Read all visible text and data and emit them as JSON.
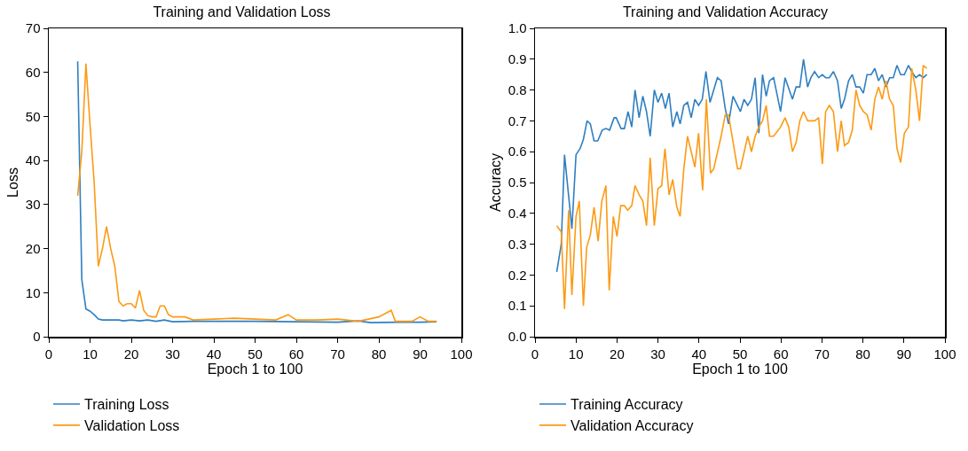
{
  "chart_data": [
    {
      "type": "line",
      "title": "Training and Validation Loss",
      "xlabel": "Epoch 1 to 100",
      "ylabel": "Loss",
      "xlim": [
        0,
        100
      ],
      "xticks": [
        0,
        10,
        20,
        30,
        40,
        50,
        60,
        70,
        80,
        90,
        100
      ],
      "ylim": [
        0,
        70
      ],
      "yticks": [
        0,
        10,
        20,
        30,
        40,
        50,
        60,
        70
      ],
      "grid": false,
      "legend": "bottom",
      "marker": "none",
      "line_style": "solid",
      "series": [
        {
          "name": "Training Loss",
          "color": "#2f7fc1",
          "x": [
            7,
            8,
            9,
            10,
            11,
            12,
            13,
            15,
            17,
            18,
            20,
            22,
            24,
            26,
            28,
            30,
            35,
            40,
            50,
            60,
            70,
            75,
            78,
            85,
            90,
            94
          ],
          "values": [
            62.5,
            13,
            6.3,
            5.8,
            5,
            4,
            3.8,
            3.8,
            3.8,
            3.6,
            3.8,
            3.6,
            3.8,
            3.5,
            3.8,
            3.4,
            3.5,
            3.5,
            3.5,
            3.4,
            3.3,
            3.6,
            3.2,
            3.3,
            3.3,
            3.4
          ]
        },
        {
          "name": "Validation Loss",
          "color": "#fd9a14",
          "x": [
            7,
            8,
            9,
            10,
            11,
            12,
            13,
            14,
            15,
            16,
            17,
            18,
            19,
            20,
            21,
            22,
            23,
            24,
            25,
            26,
            27,
            28,
            29,
            30,
            33,
            35,
            40,
            45,
            50,
            55,
            58,
            60,
            65,
            70,
            75,
            80,
            83,
            84,
            88,
            90,
            92,
            94
          ],
          "values": [
            32,
            42,
            62,
            48,
            35,
            16,
            20,
            25,
            20,
            16,
            8,
            7,
            7.5,
            7.5,
            6.5,
            10.5,
            6,
            4.8,
            4.5,
            4.5,
            7,
            7,
            5,
            4.5,
            4.5,
            3.8,
            4,
            4.2,
            4,
            3.8,
            5,
            3.8,
            3.8,
            4,
            3.5,
            4.5,
            6,
            3.5,
            3.5,
            4.5,
            3.5,
            3.5
          ]
        }
      ]
    },
    {
      "type": "line",
      "title": "Training and Validation Accuracy",
      "xlabel": "Epoch 1 to 100",
      "ylabel": "Accuracy",
      "xlim": [
        0,
        100
      ],
      "xticks": [
        0,
        10,
        20,
        30,
        40,
        50,
        60,
        70,
        80,
        90,
        100
      ],
      "ylim": [
        0,
        1
      ],
      "yticks": [
        {
          "value": 0,
          "label": "0.0"
        },
        0.1,
        0.2,
        0.3,
        0.4,
        0.5,
        0.6,
        0.7,
        0.8,
        0.9,
        {
          "value": 1,
          "label": "1.0"
        }
      ],
      "grid": false,
      "legend": "bottom",
      "marker": "none",
      "line_style": "solid",
      "series": [
        {
          "name": "Training Accuracy",
          "color": "#2f7fc1",
          "x": [
            5.3,
            6.4,
            7.2,
            9,
            10,
            11,
            11.8,
            12.7,
            13.5,
            14.4,
            15.3,
            16.4,
            17.3,
            18.2,
            19.3,
            19.8,
            21,
            21.8,
            22.7,
            23.6,
            24.4,
            25.4,
            26.3,
            27.2,
            28.1,
            29.1,
            30,
            30.9,
            31.8,
            32.7,
            33.6,
            34.6,
            35.4,
            36.3,
            37.2,
            38.1,
            39,
            39.9,
            40.8,
            41.7,
            42.7,
            43.6,
            44.5,
            45.4,
            46.4,
            47.2,
            48.3,
            50.1,
            51,
            51.9,
            52.8,
            53.7,
            54.6,
            55.5,
            56.4,
            57.2,
            58.2,
            59.9,
            61,
            62.8,
            63.7,
            64.6,
            65.5,
            66.5,
            67.3,
            68.2,
            69.2,
            70.1,
            70.9,
            71.8,
            72.8,
            73.8,
            74.7,
            75.5,
            76.5,
            77.4,
            78.3,
            79.2,
            80.1,
            81,
            82,
            82.9,
            83.8,
            84.7,
            85.6,
            86.5,
            87.4,
            88.3,
            89.2,
            90.1,
            91.1,
            91.9,
            92.9,
            93.8,
            94.7,
            95.6
          ],
          "values": [
            0.21,
            0.3,
            0.59,
            0.35,
            0.59,
            0.61,
            0.64,
            0.7,
            0.69,
            0.635,
            0.635,
            0.67,
            0.675,
            0.67,
            0.71,
            0.71,
            0.675,
            0.675,
            0.73,
            0.68,
            0.8,
            0.71,
            0.78,
            0.73,
            0.65,
            0.8,
            0.76,
            0.79,
            0.74,
            0.79,
            0.68,
            0.73,
            0.69,
            0.75,
            0.76,
            0.71,
            0.77,
            0.75,
            0.77,
            0.86,
            0.76,
            0.8,
            0.84,
            0.83,
            0.74,
            0.69,
            0.78,
            0.73,
            0.77,
            0.75,
            0.77,
            0.84,
            0.66,
            0.85,
            0.78,
            0.83,
            0.84,
            0.73,
            0.84,
            0.77,
            0.81,
            0.81,
            0.9,
            0.81,
            0.84,
            0.86,
            0.84,
            0.85,
            0.84,
            0.84,
            0.86,
            0.83,
            0.74,
            0.77,
            0.83,
            0.85,
            0.81,
            0.81,
            0.79,
            0.85,
            0.85,
            0.87,
            0.83,
            0.85,
            0.81,
            0.84,
            0.84,
            0.88,
            0.85,
            0.85,
            0.88,
            0.86,
            0.84,
            0.85,
            0.84,
            0.85
          ]
        },
        {
          "name": "Validation Accuracy",
          "color": "#fd9a14",
          "x": [
            5.3,
            6.4,
            7.2,
            8.2,
            9,
            10,
            10.8,
            11.8,
            12.6,
            13.5,
            14.4,
            15.4,
            16.3,
            17.3,
            18.1,
            19.1,
            20,
            20.9,
            21.8,
            22.6,
            23.6,
            24.4,
            25.4,
            26.3,
            27.2,
            28.1,
            29.1,
            30,
            30.9,
            31.7,
            32.7,
            33.6,
            34.6,
            35.4,
            36.3,
            37.2,
            39,
            39.9,
            40.9,
            41.8,
            42.8,
            43.6,
            45.4,
            46.4,
            47.2,
            49.4,
            50.1,
            51.9,
            52.8,
            53.7,
            54.6,
            55.5,
            56.4,
            57.2,
            58.2,
            59.9,
            61,
            61.9,
            62.8,
            63.7,
            64.6,
            65.5,
            66.5,
            68.2,
            69.2,
            70.1,
            70.9,
            71.8,
            72.8,
            73.8,
            74.7,
            75.5,
            76.5,
            77.4,
            78.3,
            79.2,
            80.1,
            81,
            82,
            82.9,
            83.8,
            84.7,
            85.6,
            86.5,
            87.4,
            88.3,
            89.2,
            90.1,
            91.1,
            91.9,
            92.9,
            93.8,
            94.7,
            95.6
          ],
          "values": [
            0.36,
            0.34,
            0.09,
            0.41,
            0.135,
            0.39,
            0.44,
            0.1,
            0.29,
            0.33,
            0.42,
            0.31,
            0.44,
            0.49,
            0.15,
            0.39,
            0.325,
            0.425,
            0.425,
            0.41,
            0.425,
            0.49,
            0.46,
            0.44,
            0.36,
            0.58,
            0.36,
            0.48,
            0.49,
            0.61,
            0.46,
            0.51,
            0.42,
            0.39,
            0.545,
            0.65,
            0.55,
            0.66,
            0.475,
            0.77,
            0.53,
            0.545,
            0.65,
            0.72,
            0.72,
            0.545,
            0.545,
            0.65,
            0.6,
            0.65,
            0.68,
            0.7,
            0.75,
            0.65,
            0.65,
            0.68,
            0.71,
            0.68,
            0.6,
            0.63,
            0.7,
            0.73,
            0.7,
            0.7,
            0.71,
            0.56,
            0.73,
            0.75,
            0.73,
            0.6,
            0.7,
            0.62,
            0.63,
            0.67,
            0.8,
            0.75,
            0.73,
            0.72,
            0.67,
            0.77,
            0.81,
            0.77,
            0.83,
            0.77,
            0.75,
            0.61,
            0.565,
            0.66,
            0.68,
            0.87,
            0.8,
            0.7,
            0.88,
            0.87
          ]
        }
      ]
    }
  ]
}
